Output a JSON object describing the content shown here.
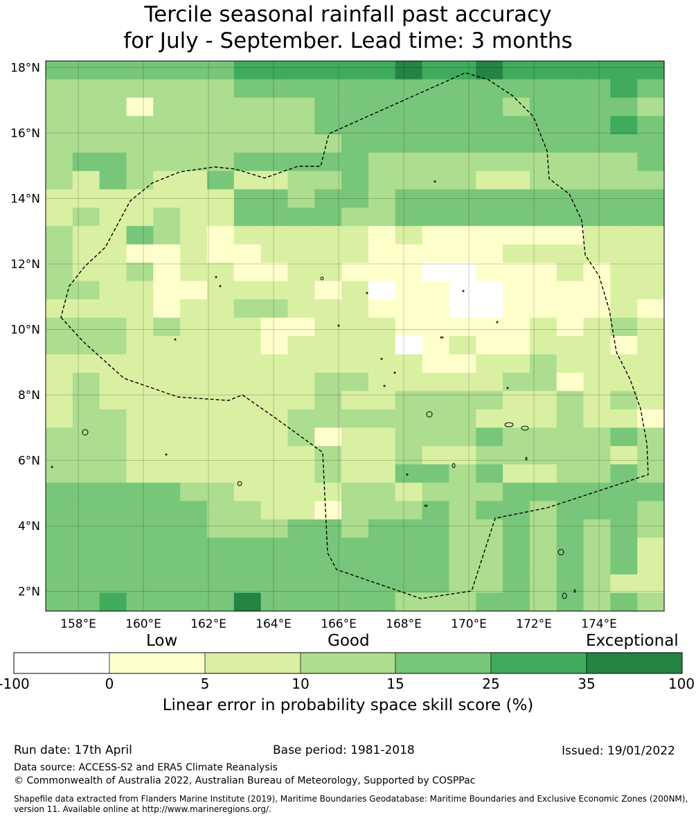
{
  "title_line1": "Tercile seasonal rainfall past accuracy",
  "title_line2": "for July - September. Lead time: 3 months",
  "map": {
    "lon_range": [
      157,
      176
    ],
    "lat_range": [
      1.4,
      18.2
    ],
    "lat_ticks": [
      "18°N",
      "16°N",
      "14°N",
      "12°N",
      "10°N",
      "8°N",
      "6°N",
      "4°N",
      "2°N"
    ],
    "lon_ticks": [
      "158°E",
      "160°E",
      "162°E",
      "164°E",
      "166°E",
      "168°E",
      "170°E",
      "172°E",
      "174°E"
    ],
    "category_colors": [
      "#ffffff",
      "#ffffcc",
      "#d9f0a3",
      "#addd8e",
      "#78c679",
      "#41ab5d",
      "#238443"
    ],
    "eez_boundary_dashed": true
  },
  "colorbar": {
    "labels": {
      "low": "Low",
      "good": "Good",
      "exceptional": "Exceptional"
    },
    "ticks": [
      "-100",
      "0",
      "5",
      "10",
      "15",
      "25",
      "35",
      "100"
    ],
    "colors": [
      "#ffffff",
      "#ffffcc",
      "#d9f0a3",
      "#addd8e",
      "#78c679",
      "#41ab5d",
      "#238443"
    ],
    "caption": "Linear error in probability space skill score (%)"
  },
  "footer": {
    "run_date": "Run date: 17th April",
    "base_period": "Base period: 1981-2018",
    "issued": "Issued: 19/01/2022",
    "data_source": "Data source: ACCESS-S2 and ERA5 Climate Reanalysis",
    "copyright": "© Commonwealth of Australia 2022, Australian Bureau of Meteorology, Supported by COSPPac",
    "shapefile": "Shapefile data extracted from Flanders Marine Institute (2019), Maritime Boundaries Geodatabase: Maritime Boundaries and Exclusive Economic Zones (200NM), version 11. Available online at http://www.marineregions.org/."
  }
}
